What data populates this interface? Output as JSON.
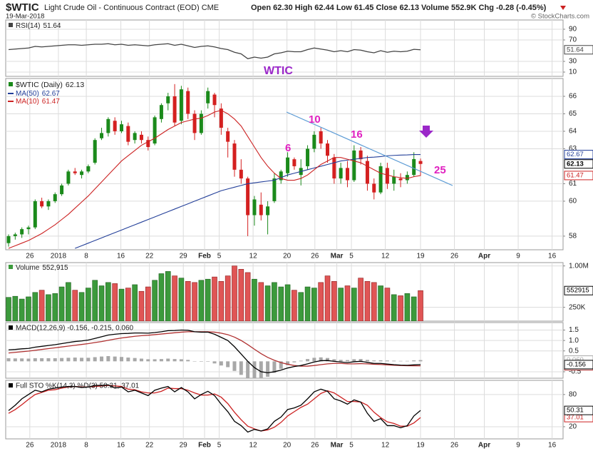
{
  "header": {
    "symbol": "$WTIC",
    "name": "Light Crude Oil - Continuous Contract (EOD) CME",
    "date": "19-Mar-2018",
    "stats": "Open 62.30  High 62.44  Low 61.45  Close 62.13  Volume 552.9K  Chg -0.28 (-0.45%)",
    "credit": "© StockCharts.com"
  },
  "annotations": {
    "title": "WTIC",
    "labels": [
      "6",
      "10",
      "16",
      "25"
    ]
  },
  "chart_data": [
    {
      "type": "line",
      "ylim": [
        2,
        107.3
      ],
      "yticks": [
        90,
        70,
        30,
        10
      ],
      "series": [
        {
          "name": "RSI(14)",
          "color": "#444444",
          "values": [
            52,
            53,
            54,
            55,
            58,
            57,
            58,
            59,
            60,
            61,
            61,
            60,
            61,
            62,
            62,
            63,
            61,
            62,
            60,
            61,
            60,
            59,
            61,
            62,
            63,
            60,
            62,
            59,
            56,
            58,
            59,
            57,
            54,
            52,
            47,
            44,
            35,
            38,
            36,
            38,
            44,
            46,
            49,
            48,
            48,
            52,
            55,
            53,
            51,
            48,
            50,
            48,
            52,
            51,
            48,
            46,
            50,
            47,
            49,
            48,
            49,
            52.5,
            51.64
          ]
        }
      ]
    },
    {
      "type": "candlestick",
      "name": "$WTIC (Daily)",
      "xlim": [
        -0.43,
        83.45
      ],
      "xticks": [
        {
          "value": 3.2,
          "label": "26"
        },
        {
          "value": 7.5,
          "label": "2018"
        },
        {
          "value": 11.7,
          "label": "8"
        },
        {
          "value": 16.9,
          "label": "16"
        },
        {
          "value": 21.2,
          "label": "22"
        },
        {
          "value": 26.3,
          "label": "29"
        },
        {
          "value": 29.5,
          "label": "Feb"
        },
        {
          "value": 31.7,
          "label": "5"
        },
        {
          "value": 36.8,
          "label": "12"
        },
        {
          "value": 41.9,
          "label": "20"
        },
        {
          "value": 46.1,
          "label": "26"
        },
        {
          "value": 49.4,
          "label": "Mar"
        },
        {
          "value": 51.6,
          "label": "5"
        },
        {
          "value": 56.7,
          "label": "12"
        },
        {
          "value": 62,
          "label": "19"
        },
        {
          "value": 67.1,
          "label": "26"
        },
        {
          "value": 71.6,
          "label": "Apr"
        },
        {
          "value": 76.7,
          "label": "9"
        },
        {
          "value": 81.8,
          "label": "16"
        }
      ],
      "ylim": [
        57.22,
        67.02
      ],
      "yticks": [
        66,
        65,
        64,
        63,
        61,
        60,
        58
      ],
      "up_color": "#1b8a1b",
      "down_color": "#d42020",
      "open": [
        57.6,
        58.0,
        58.1,
        58.4,
        58.5,
        60.0,
        59.7,
        60.0,
        60.4,
        61.0,
        61.7,
        61.5,
        61.7,
        62.2,
        63.6,
        63.9,
        64.6,
        64.0,
        64.3,
        63.5,
        63.8,
        63.5,
        63.3,
        64.7,
        65.6,
        66.0,
        64.6,
        66.3,
        65.0,
        63.9,
        65.6,
        66.1,
        65.3,
        64.0,
        63.3,
        61.8,
        61.3,
        59.2,
        59.8,
        59.2,
        60.0,
        61.2,
        61.6,
        62.4,
        61.5,
        62.0,
        63.0,
        64.0,
        63.3,
        62.5,
        61.3,
        61.9,
        61.2,
        62.9,
        62.3,
        61.0,
        60.5,
        61.9,
        61.0,
        61.3,
        61.2,
        61.5,
        62.3
      ],
      "high": [
        58.1,
        58.2,
        58.5,
        58.6,
        60.1,
        60.2,
        60.1,
        60.5,
        61.0,
        61.8,
        61.9,
        61.8,
        62.1,
        63.6,
        64.2,
        64.8,
        64.8,
        64.6,
        64.5,
        64.0,
        64.0,
        63.7,
        64.9,
        65.6,
        66.2,
        66.7,
        66.6,
        66.5,
        65.2,
        65.2,
        66.5,
        66.2,
        65.6,
        64.2,
        63.5,
        62.4,
        61.4,
        60.3,
        60.5,
        60.0,
        61.6,
        61.8,
        62.8,
        62.5,
        62.4,
        63.2,
        64.0,
        64.2,
        63.5,
        62.7,
        62.2,
        62.3,
        63.2,
        63.1,
        62.6,
        61.3,
        62.2,
        62.2,
        61.8,
        61.6,
        61.7,
        62.8,
        62.44
      ],
      "low": [
        57.4,
        57.8,
        57.9,
        58.1,
        58.4,
        59.6,
        59.5,
        59.9,
        60.3,
        60.9,
        61.5,
        61.3,
        61.6,
        62.1,
        63.5,
        63.7,
        63.8,
        63.9,
        63.2,
        63.3,
        63.3,
        62.9,
        63.2,
        64.5,
        65.2,
        64.3,
        64.4,
        64.7,
        63.5,
        63.8,
        65.3,
        64.8,
        63.8,
        62.5,
        61.4,
        61.0,
        58.0,
        58.6,
        58.9,
        58.1,
        59.9,
        61.0,
        61.4,
        61.8,
        60.9,
        61.8,
        62.8,
        63.0,
        62.2,
        61.0,
        61.0,
        60.8,
        61.1,
        62.1,
        60.6,
        60.1,
        60.4,
        60.7,
        60.6,
        60.8,
        61.0,
        61.4,
        61.45
      ],
      "close": [
        58.0,
        58.1,
        58.4,
        58.5,
        60.0,
        59.7,
        60.0,
        60.4,
        60.9,
        61.7,
        61.6,
        61.7,
        62.0,
        63.5,
        63.9,
        64.7,
        64.0,
        64.4,
        63.4,
        63.9,
        63.5,
        63.1,
        64.8,
        65.5,
        66.0,
        64.5,
        66.4,
        65.0,
        63.9,
        65.0,
        66.3,
        65.5,
        64.2,
        63.4,
        61.8,
        61.3,
        59.2,
        60.1,
        59.2,
        59.7,
        61.3,
        61.7,
        62.5,
        62.0,
        61.9,
        63.0,
        63.8,
        63.3,
        62.6,
        61.3,
        61.9,
        61.2,
        62.9,
        62.4,
        61.0,
        60.5,
        62.0,
        61.0,
        61.4,
        61.2,
        61.5,
        62.41,
        62.13
      ],
      "series": [
        {
          "name": "MA(50)",
          "color": "#233f99",
          "values": [
            null,
            null,
            null,
            null,
            null,
            null,
            null,
            null,
            null,
            null,
            57.3,
            57.45,
            57.6,
            57.75,
            57.9,
            58.05,
            58.2,
            58.35,
            58.5,
            58.65,
            58.8,
            58.95,
            59.1,
            59.25,
            59.4,
            59.55,
            59.7,
            59.85,
            60.0,
            60.15,
            60.3,
            60.45,
            60.6,
            60.7,
            60.8,
            60.9,
            61.0,
            61.05,
            61.1,
            61.15,
            61.2,
            61.35,
            61.5,
            61.6,
            61.7,
            61.8,
            61.9,
            62.0,
            62.1,
            62.2,
            62.3,
            62.35,
            62.4,
            62.45,
            62.5,
            62.52,
            62.55,
            62.6,
            62.62,
            62.64,
            62.65,
            62.67,
            62.67
          ]
        },
        {
          "name": "MA(10)",
          "color": "#cc2222",
          "values": [
            57.3,
            57.45,
            57.6,
            57.75,
            57.95,
            58.15,
            58.4,
            58.65,
            58.95,
            59.25,
            59.6,
            59.95,
            60.3,
            60.7,
            61.1,
            61.5,
            61.9,
            62.3,
            62.6,
            62.9,
            63.2,
            63.4,
            63.6,
            63.85,
            64.1,
            64.3,
            64.5,
            64.6,
            64.7,
            64.75,
            64.9,
            65.1,
            65.2,
            65.0,
            64.7,
            64.3,
            63.7,
            63.1,
            62.5,
            62.0,
            61.6,
            61.3,
            61.2,
            61.2,
            61.3,
            61.5,
            61.8,
            62.1,
            62.3,
            62.5,
            62.5,
            62.4,
            62.3,
            62.2,
            62.0,
            61.8,
            61.6,
            61.5,
            61.4,
            61.35,
            61.3,
            61.4,
            61.47
          ]
        }
      ]
    },
    {
      "type": "bar",
      "name": "Volume",
      "last_value_label": "552,915",
      "ylim": [
        0,
        1060000
      ],
      "yticks": [
        {
          "value": 1000000,
          "label": "1.00M"
        },
        {
          "value": 250000,
          "label": "250K"
        }
      ],
      "up_color": "#3c9a3c",
      "down_color": "#e05555",
      "values": [
        430000,
        450000,
        400000,
        440000,
        520000,
        560000,
        480000,
        500000,
        620000,
        700000,
        560000,
        520000,
        600000,
        740000,
        640000,
        700000,
        680000,
        580000,
        600000,
        660000,
        540000,
        620000,
        740000,
        860000,
        900000,
        820000,
        780000,
        720000,
        700000,
        740000,
        760000,
        800000,
        720000,
        820000,
        1000000,
        940000,
        880000,
        760000,
        700000,
        640000,
        700000,
        620000,
        660000,
        560000,
        520000,
        620000,
        600000,
        700000,
        820000,
        720000,
        600000,
        640000,
        600000,
        780000,
        720000,
        700000,
        640000,
        600000,
        480000,
        460000,
        500000,
        440000,
        552915
      ]
    },
    {
      "type": "line",
      "legend": "MACD(12,26,9) -0.156, -0.215, 0.060",
      "ylim": [
        -0.81,
        1.86
      ],
      "yticks": [
        1.5,
        {
          "value": 1,
          "label": "1.0"
        },
        0.5,
        -0.5
      ],
      "series": [
        {
          "kind": "bar",
          "color": "#a8a8a8",
          "last_label": "0.060",
          "values": [
            0.15,
            0.14,
            0.14,
            0.13,
            0.15,
            0.15,
            0.15,
            0.15,
            0.16,
            0.17,
            0.18,
            0.17,
            0.17,
            0.2,
            0.23,
            0.25,
            0.23,
            0.21,
            0.18,
            0.16,
            0.13,
            0.1,
            0.1,
            0.11,
            0.13,
            0.11,
            0.1,
            0.07,
            0.0,
            -0.02,
            -0.02,
            -0.1,
            -0.2,
            -0.28,
            -0.46,
            -0.65,
            -0.8,
            -0.88,
            -0.87,
            -0.74,
            -0.55,
            -0.36,
            -0.18,
            -0.05,
            0.03,
            0.11,
            0.17,
            0.19,
            0.16,
            0.1,
            0.07,
            0.06,
            0.1,
            0.11,
            0.07,
            0.04,
            0.05,
            0.04,
            0.03,
            0.02,
            0.02,
            0.045,
            0.06
          ]
        },
        {
          "color": "#b03030",
          "values": [
            0.4,
            0.43,
            0.46,
            0.49,
            0.53,
            0.57,
            0.61,
            0.65,
            0.69,
            0.73,
            0.77,
            0.81,
            0.85,
            0.9,
            0.95,
            1.01,
            1.07,
            1.12,
            1.16,
            1.2,
            1.23,
            1.25,
            1.28,
            1.31,
            1.34,
            1.37,
            1.4,
            1.42,
            1.42,
            1.42,
            1.42,
            1.4,
            1.35,
            1.28,
            1.16,
            1.0,
            0.8,
            0.58,
            0.37,
            0.19,
            0.05,
            -0.06,
            -0.14,
            -0.2,
            -0.23,
            -0.23,
            -0.2,
            -0.16,
            -0.12,
            -0.1,
            -0.1,
            -0.12,
            -0.12,
            -0.11,
            -0.12,
            -0.14,
            -0.15,
            -0.17,
            -0.19,
            -0.2,
            -0.21,
            -0.215,
            -0.215
          ]
        },
        {
          "color": "#000000",
          "values": [
            0.55,
            0.57,
            0.6,
            0.62,
            0.68,
            0.72,
            0.76,
            0.8,
            0.85,
            0.9,
            0.95,
            0.98,
            1.02,
            1.1,
            1.18,
            1.26,
            1.3,
            1.33,
            1.34,
            1.36,
            1.36,
            1.35,
            1.38,
            1.42,
            1.47,
            1.48,
            1.5,
            1.49,
            1.42,
            1.4,
            1.4,
            1.3,
            1.15,
            1.0,
            0.7,
            0.35,
            0.0,
            -0.3,
            -0.5,
            -0.55,
            -0.5,
            -0.42,
            -0.32,
            -0.25,
            -0.2,
            -0.12,
            -0.03,
            0.03,
            0.04,
            0.0,
            -0.03,
            -0.06,
            -0.02,
            0.0,
            -0.05,
            -0.1,
            -0.1,
            -0.13,
            -0.16,
            -0.18,
            -0.19,
            -0.17,
            -0.156
          ]
        }
      ]
    },
    {
      "type": "line",
      "legend": "Full STO %K(14,3) %D(3) 50.31, 37.01",
      "xlim": [
        -0.43,
        83.45
      ],
      "xticks": [
        {
          "value": 3.2,
          "label": "26"
        },
        {
          "value": 7.5,
          "label": "2018"
        },
        {
          "value": 11.7,
          "label": "8"
        },
        {
          "value": 16.9,
          "label": "16"
        },
        {
          "value": 21.2,
          "label": "22"
        },
        {
          "value": 26.3,
          "label": "29"
        },
        {
          "value": 29.5,
          "label": "Feb"
        },
        {
          "value": 31.7,
          "label": "5"
        },
        {
          "value": 36.8,
          "label": "12"
        },
        {
          "value": 41.9,
          "label": "20"
        },
        {
          "value": 46.1,
          "label": "26"
        },
        {
          "value": 49.4,
          "label": "Mar"
        },
        {
          "value": 51.6,
          "label": "5"
        },
        {
          "value": 56.7,
          "label": "12"
        },
        {
          "value": 62,
          "label": "19"
        },
        {
          "value": 67.1,
          "label": "26"
        },
        {
          "value": 71.6,
          "label": "Apr"
        },
        {
          "value": 76.7,
          "label": "9"
        },
        {
          "value": 81.8,
          "label": "16"
        }
      ],
      "ylim": [
        -2.7,
        106.4
      ],
      "yticks": [
        80,
        20
      ],
      "series": [
        {
          "color": "#cc2222",
          "values": [
            45,
            52,
            61,
            71,
            80,
            84,
            88,
            89,
            92,
            94,
            95,
            94,
            94,
            95,
            96,
            97,
            96,
            95,
            90,
            89,
            85,
            83,
            83,
            86,
            92,
            91,
            91,
            88,
            83,
            79,
            79,
            81,
            75,
            63,
            47,
            33,
            21,
            16,
            12,
            14,
            19,
            28,
            40,
            48,
            56,
            62,
            72,
            82,
            87,
            83,
            75,
            67,
            67,
            66,
            60,
            47,
            37,
            29,
            26,
            21,
            21,
            27,
            37.01
          ]
        },
        {
          "color": "#000000",
          "values": [
            50,
            60,
            72,
            80,
            88,
            85,
            90,
            92,
            94,
            95,
            95,
            93,
            94,
            97,
            97,
            98,
            92,
            94,
            85,
            88,
            83,
            78,
            88,
            92,
            95,
            85,
            93,
            85,
            72,
            80,
            86,
            78,
            62,
            48,
            30,
            22,
            10,
            15,
            12,
            16,
            30,
            38,
            52,
            55,
            60,
            72,
            85,
            90,
            86,
            72,
            68,
            62,
            70,
            66,
            45,
            30,
            35,
            22,
            22,
            18,
            22,
            40,
            50.31
          ]
        }
      ]
    }
  ]
}
